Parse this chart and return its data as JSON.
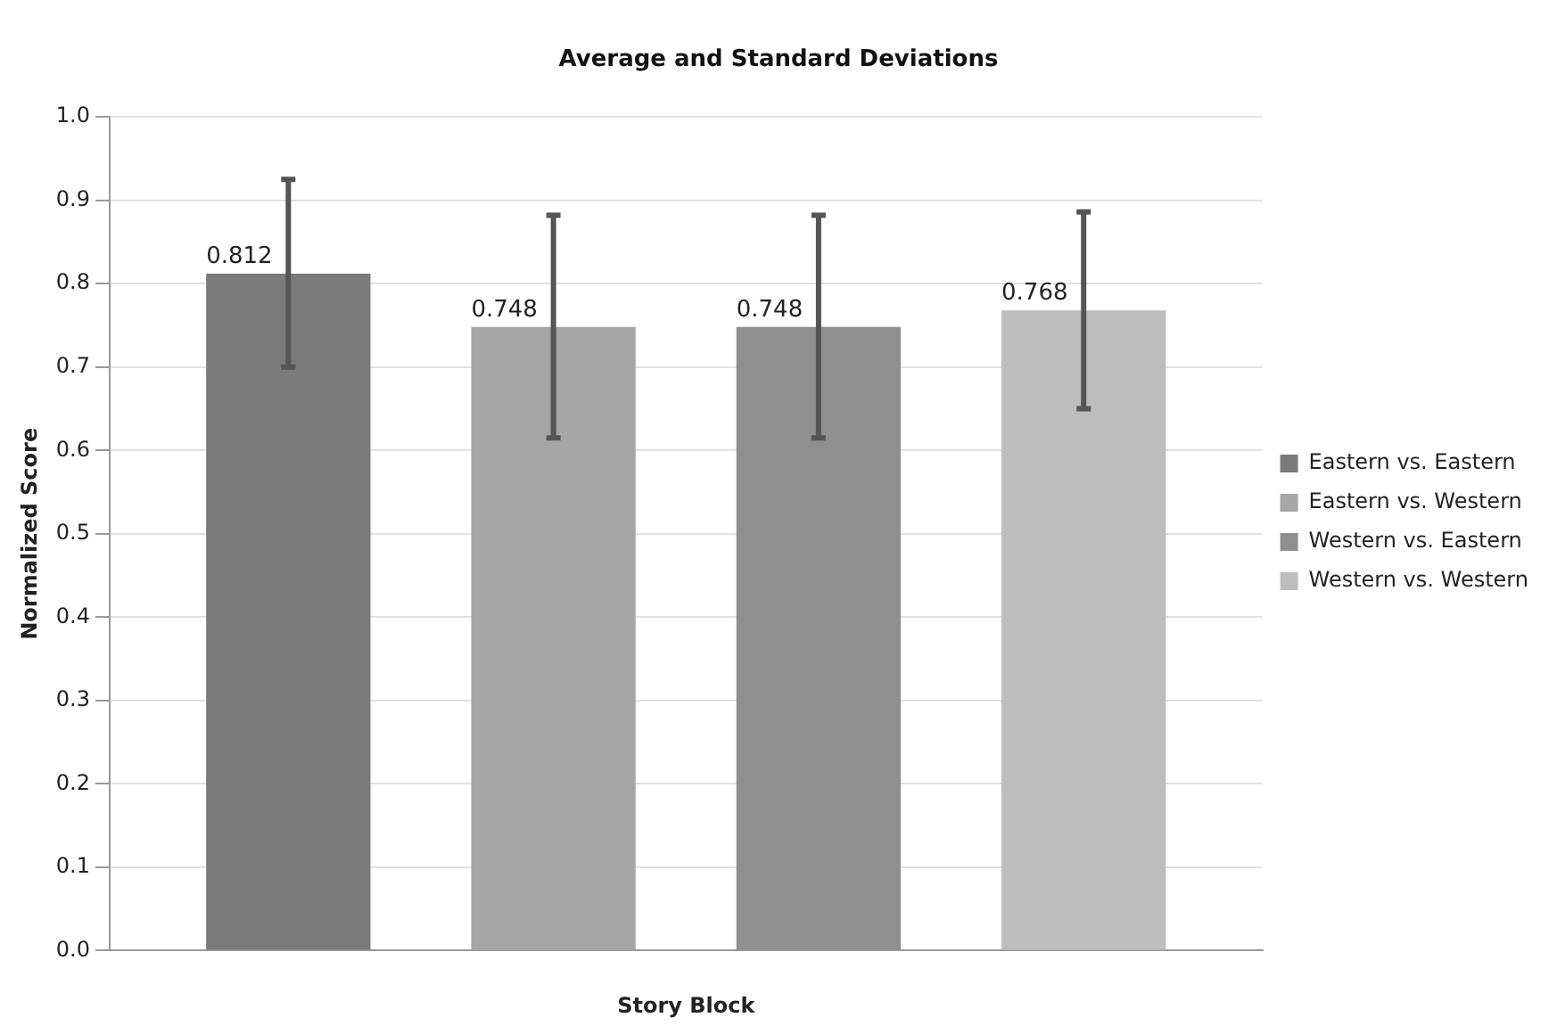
{
  "chart_data": {
    "type": "bar",
    "title": "Average and Standard Deviations",
    "xlabel": "Story Block",
    "ylabel": "Normalized Score",
    "categories": [
      null
    ],
    "series": [
      {
        "name": "Eastern vs. Eastern",
        "color": "#7a7a7a",
        "values": [
          0.812
        ],
        "errors": [
          [
            0.7,
            0.925
          ]
        ]
      },
      {
        "name": "Eastern vs. Western",
        "color": "#a6a6a6",
        "values": [
          0.748
        ],
        "errors": [
          [
            0.615,
            0.882
          ]
        ]
      },
      {
        "name": "Western vs. Eastern",
        "color": "#8f8f8f",
        "values": [
          0.748
        ],
        "errors": [
          [
            0.615,
            0.882
          ]
        ]
      },
      {
        "name": "Western vs. Western",
        "color": "#bdbdbd",
        "values": [
          0.768
        ],
        "errors": [
          [
            0.65,
            0.886
          ]
        ]
      }
    ],
    "ylim": [
      0,
      1
    ],
    "yticks": [
      {
        "value": 0,
        "label": "0.0"
      },
      0.1,
      0.2,
      0.3,
      0.4,
      0.5,
      0.6,
      0.7,
      0.8,
      0.9,
      {
        "value": 1,
        "label": "1.0"
      }
    ],
    "grid": "y",
    "legend": "right",
    "data_labels": true
  }
}
